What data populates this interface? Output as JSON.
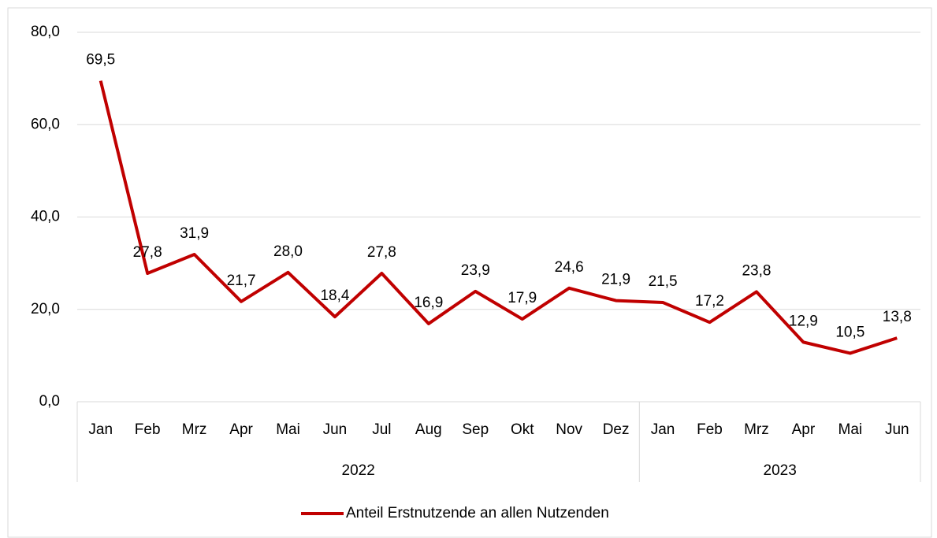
{
  "chart_data": {
    "type": "line",
    "category_groups": [
      {
        "label": "2022",
        "categories": [
          "Jan",
          "Feb",
          "Mrz",
          "Apr",
          "Mai",
          "Jun",
          "Jul",
          "Aug",
          "Sep",
          "Okt",
          "Nov",
          "Dez"
        ]
      },
      {
        "label": "2023",
        "categories": [
          "Jan",
          "Feb",
          "Mrz",
          "Apr",
          "Mai",
          "Jun"
        ]
      }
    ],
    "series": [
      {
        "name": "Anteil Erstnutzende an allen Nutzenden",
        "color": "#c00000",
        "values": [
          69.5,
          27.8,
          31.9,
          21.7,
          28.0,
          18.4,
          27.8,
          16.9,
          23.9,
          17.9,
          24.6,
          21.9,
          21.5,
          17.2,
          23.8,
          12.9,
          10.5,
          13.8
        ],
        "value_labels": [
          "69,5",
          "27,8",
          "31,9",
          "21,7",
          "28,0",
          "18,4",
          "27,8",
          "16,9",
          "23,9",
          "17,9",
          "24,6",
          "21,9",
          "21,5",
          "17,2",
          "23,8",
          "12,9",
          "10,5",
          "13,8"
        ]
      }
    ],
    "ylim": [
      0,
      80
    ],
    "yticks": [
      {
        "value": 0,
        "label": "0,0"
      },
      {
        "value": 20,
        "label": "20,0"
      },
      {
        "value": 40,
        "label": "40,0"
      },
      {
        "value": 60,
        "label": "60,0"
      },
      {
        "value": 80,
        "label": "80,0"
      }
    ],
    "grid": true,
    "legend": "bottom"
  }
}
